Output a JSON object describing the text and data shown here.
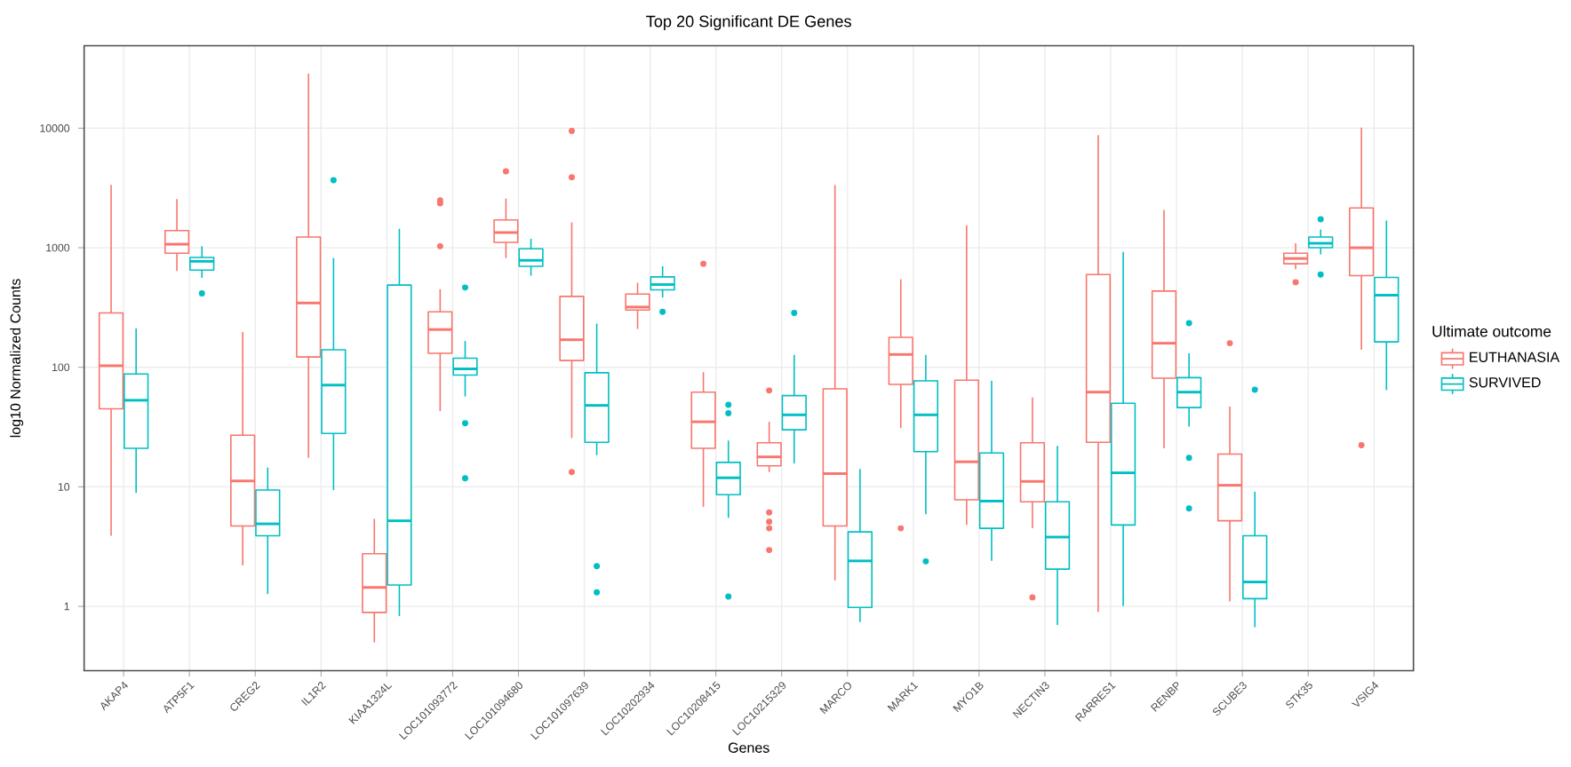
{
  "chart_data": {
    "type": "box",
    "title": "Top 20 Significant DE Genes",
    "xlabel": "Genes",
    "ylabel": "log10 Normalized Counts",
    "legend_title": "Ultimate outcome",
    "categories": [
      "AKAP4",
      "ATP5F1",
      "CREG2",
      "IL1R2",
      "KIAA1324L",
      "LOC101093772",
      "LOC101094680",
      "LOC101097639",
      "LOC10202934",
      "LOC10208415",
      "LOC10215329",
      "MARCO",
      "MARK1",
      "MYO1B",
      "NECTIN3",
      "RARRES1",
      "RENBP",
      "SCUBE3",
      "STK35",
      "VSIG4"
    ],
    "series": [
      {
        "name": "EUTHANASIA",
        "color": "#f8766d",
        "boxes": [
          {
            "low": 3.9,
            "q1": 45,
            "median": 103,
            "q3": 285,
            "high": 3350
          },
          {
            "low": 640,
            "q1": 900,
            "median": 1070,
            "q3": 1390,
            "high": 2550
          },
          {
            "low": 2.2,
            "q1": 4.7,
            "median": 11.2,
            "q3": 27,
            "high": 197
          },
          {
            "low": 17.5,
            "q1": 122,
            "median": 345,
            "q3": 1230,
            "high": 28600
          },
          {
            "low": 0.5,
            "q1": 0.89,
            "median": 1.44,
            "q3": 2.76,
            "high": 5.4
          },
          {
            "low": 43,
            "q1": 131,
            "median": 207,
            "q3": 291,
            "high": 449,
            "outliers": [
              2490,
              2350,
              1030
            ]
          },
          {
            "low": 820,
            "q1": 1110,
            "median": 1340,
            "q3": 1710,
            "high": 2580,
            "outliers": [
              4360
            ]
          },
          {
            "low": 25.6,
            "q1": 114,
            "median": 170,
            "q3": 392,
            "high": 1630,
            "outliers": [
              9470,
              3890,
              13.3
            ]
          },
          {
            "low": 209,
            "q1": 301,
            "median": 319,
            "q3": 410,
            "high": 509
          },
          {
            "low": 6.8,
            "q1": 21,
            "median": 35,
            "q3": 62,
            "high": 91,
            "outliers": [
              734
            ]
          },
          {
            "low": 13.3,
            "q1": 15,
            "median": 17.8,
            "q3": 23.4,
            "high": 35,
            "outliers": [
              64,
              6.1,
              5.1,
              4.5,
              2.96
            ]
          },
          {
            "low": 1.65,
            "q1": 4.7,
            "median": 12.9,
            "q3": 66,
            "high": 3350
          },
          {
            "low": 31,
            "q1": 72,
            "median": 128,
            "q3": 178,
            "high": 545,
            "outliers": [
              4.5
            ]
          },
          {
            "low": 4.8,
            "q1": 7.8,
            "median": 16.2,
            "q3": 78,
            "high": 1540
          },
          {
            "low": 4.5,
            "q1": 7.5,
            "median": 11.1,
            "q3": 23.4,
            "high": 56,
            "outliers": [
              1.19
            ]
          },
          {
            "low": 0.9,
            "q1": 23.6,
            "median": 62,
            "q3": 597,
            "high": 8740
          },
          {
            "low": 21,
            "q1": 81,
            "median": 159,
            "q3": 434,
            "high": 2070
          },
          {
            "low": 1.1,
            "q1": 5.2,
            "median": 10.3,
            "q3": 18.8,
            "high": 47,
            "outliers": [
              159
            ]
          },
          {
            "low": 662,
            "q1": 734,
            "median": 813,
            "q3": 900,
            "high": 1090,
            "outliers": [
              515
            ]
          },
          {
            "low": 140,
            "q1": 584,
            "median": 1000,
            "q3": 2150,
            "high": 10100,
            "outliers": [
              22.3
            ]
          }
        ]
      },
      {
        "name": "SURVIVED",
        "color": "#00bfc4",
        "boxes": [
          {
            "low": 8.9,
            "q1": 21,
            "median": 53,
            "q3": 88,
            "high": 211
          },
          {
            "low": 560,
            "q1": 650,
            "median": 770,
            "q3": 830,
            "high": 1030,
            "outliers": [
              415
            ]
          },
          {
            "low": 1.27,
            "q1": 3.9,
            "median": 4.9,
            "q3": 9.4,
            "high": 14.5
          },
          {
            "low": 9.4,
            "q1": 28,
            "median": 71,
            "q3": 140,
            "high": 820,
            "outliers": [
              3670
            ]
          },
          {
            "low": 0.83,
            "q1": 1.51,
            "median": 5.2,
            "q3": 487,
            "high": 1440
          },
          {
            "low": 57,
            "q1": 86,
            "median": 97,
            "q3": 119,
            "high": 166,
            "outliers": [
              465,
              34,
              11.8
            ]
          },
          {
            "low": 584,
            "q1": 700,
            "median": 785,
            "q3": 980,
            "high": 1190
          },
          {
            "low": 18.4,
            "q1": 23.6,
            "median": 48,
            "q3": 90,
            "high": 232,
            "outliers": [
              2.17,
              1.31
            ]
          },
          {
            "low": 383,
            "q1": 444,
            "median": 492,
            "q3": 571,
            "high": 701,
            "outliers": [
              291
            ]
          },
          {
            "low": 5.5,
            "q1": 8.6,
            "median": 11.9,
            "q3": 16,
            "high": 24.4,
            "outliers": [
              48.5,
              41.3,
              1.21
            ]
          },
          {
            "low": 15.7,
            "q1": 30,
            "median": 40,
            "q3": 58,
            "high": 127,
            "outliers": [
              285
            ]
          },
          {
            "low": 0.74,
            "q1": 0.98,
            "median": 2.4,
            "q3": 4.2,
            "high": 14.1
          },
          {
            "low": 5.9,
            "q1": 19.7,
            "median": 40,
            "q3": 77,
            "high": 127,
            "outliers": [
              2.38
            ]
          },
          {
            "low": 2.4,
            "q1": 4.5,
            "median": 7.6,
            "q3": 19.2,
            "high": 77
          },
          {
            "low": 0.7,
            "q1": 2.05,
            "median": 3.8,
            "q3": 7.5,
            "high": 22
          },
          {
            "low": 1.01,
            "q1": 4.8,
            "median": 13.1,
            "q3": 50,
            "high": 922
          },
          {
            "low": 32,
            "q1": 46,
            "median": 62,
            "q3": 82,
            "high": 131,
            "outliers": [
              234,
              17.5,
              6.6
            ]
          },
          {
            "low": 0.67,
            "q1": 1.16,
            "median": 1.6,
            "q3": 3.9,
            "high": 9.1,
            "outliers": [
              65
            ]
          },
          {
            "low": 880,
            "q1": 1000,
            "median": 1090,
            "q3": 1230,
            "high": 1420,
            "outliers": [
              1730,
              597
            ]
          },
          {
            "low": 64.5,
            "q1": 163,
            "median": 401,
            "q3": 565,
            "high": 1690
          }
        ]
      }
    ],
    "ylim": [
      0.29,
      49000
    ],
    "yticks": [
      1,
      10,
      100,
      1000,
      10000
    ],
    "log": "y",
    "grid": true,
    "legend": "right"
  }
}
